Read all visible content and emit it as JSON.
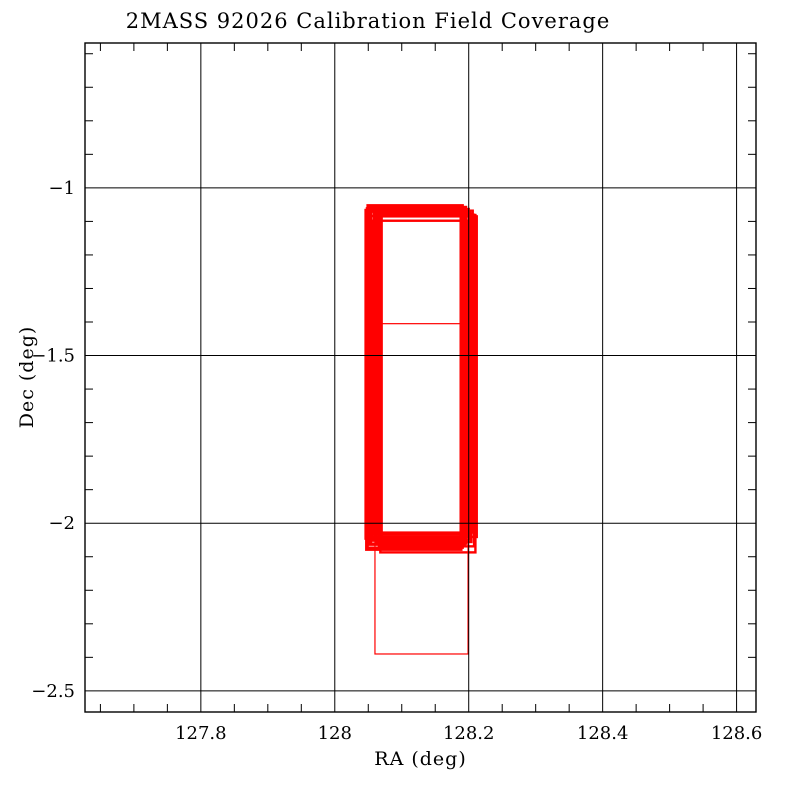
{
  "chart": {
    "title": "2MASS 92026 Calibration Field Coverage",
    "xlabel": "RA (deg)",
    "ylabel": "Dec (deg)"
  },
  "chart_data": {
    "type": "scatter",
    "subtype": "rectangle-outline-coverage-map",
    "title": "2MASS 92026 Calibration Field Coverage",
    "xlabel": "RA (deg)",
    "ylabel": "Dec (deg)",
    "xlim": [
      127.627,
      128.629
    ],
    "ylim": [
      -2.563,
      -0.568
    ],
    "grid": true,
    "x_ticks": [
      {
        "value": 127.8,
        "label": "127.8"
      },
      {
        "value": 128.0,
        "label": "128"
      },
      {
        "value": 128.2,
        "label": "128.2"
      },
      {
        "value": 128.4,
        "label": "128.4"
      },
      {
        "value": 128.6,
        "label": "128.6"
      }
    ],
    "y_ticks": [
      {
        "value": -1.0,
        "label": "−1"
      },
      {
        "value": -1.5,
        "label": "−1.5"
      },
      {
        "value": -2.0,
        "label": "−2"
      },
      {
        "value": -2.5,
        "label": "−2.5"
      }
    ],
    "x_minor_step": 0.05,
    "y_minor_step": 0.1,
    "colors": {
      "coverage": "#ff0000",
      "axes": "#000000",
      "background": "#ffffff"
    },
    "rectangles": [
      {
        "ra_min": 128.046,
        "ra_max": 128.188,
        "dec_max": -1.066,
        "dec_min": -2.046,
        "stroke_px": 2.4
      },
      {
        "ra_min": 128.058,
        "ra_max": 128.2,
        "dec_max": -1.063,
        "dec_min": -2.031,
        "stroke_px": 2.4
      },
      {
        "ra_min": 128.05,
        "ra_max": 128.192,
        "dec_max": -1.071,
        "dec_min": -2.052,
        "stroke_px": 2.4
      },
      {
        "ra_min": 128.066,
        "ra_max": 128.208,
        "dec_max": -1.08,
        "dec_min": -2.069,
        "stroke_px": 2.4
      },
      {
        "ra_min": 128.048,
        "ra_max": 128.19,
        "dec_max": -1.061,
        "dec_min": -2.033,
        "stroke_px": 2.4
      },
      {
        "ra_min": 128.062,
        "ra_max": 128.204,
        "dec_max": -1.076,
        "dec_min": -2.056,
        "stroke_px": 2.4
      },
      {
        "ra_min": 128.07,
        "ra_max": 128.212,
        "dec_max": -1.085,
        "dec_min": -2.041,
        "stroke_px": 2.4
      },
      {
        "ra_min": 128.054,
        "ra_max": 128.196,
        "dec_max": -1.057,
        "dec_min": -2.061,
        "stroke_px": 2.4
      },
      {
        "ra_min": 128.068,
        "ra_max": 128.21,
        "dec_max": -1.081,
        "dec_min": -2.087,
        "stroke_px": 2.4
      },
      {
        "ra_min": 128.047,
        "ra_max": 128.189,
        "dec_max": -1.084,
        "dec_min": -2.079,
        "stroke_px": 2.4
      },
      {
        "ra_min": 128.056,
        "ra_max": 128.198,
        "dec_max": -1.098,
        "dec_min": -2.04,
        "stroke_px": 2.4
      },
      {
        "ra_min": 128.064,
        "ra_max": 128.206,
        "dec_max": -1.068,
        "dec_min": -2.028,
        "stroke_px": 2.4
      },
      {
        "ra_min": 128.052,
        "ra_max": 128.194,
        "dec_max": -1.059,
        "dec_min": -2.064,
        "stroke_px": 2.4
      },
      {
        "ra_min": 128.06,
        "ra_max": 128.202,
        "dec_max": -1.074,
        "dec_min": -2.049,
        "stroke_px": 2.4
      },
      {
        "ra_min": 128.049,
        "ra_max": 128.191,
        "dec_max": -1.052,
        "dec_min": -2.073,
        "stroke_px": 2.4
      },
      {
        "ra_min": 128.06,
        "ra_max": 128.199,
        "dec_max": -1.405,
        "dec_min": -2.39,
        "stroke_px": 1.2
      }
    ]
  }
}
